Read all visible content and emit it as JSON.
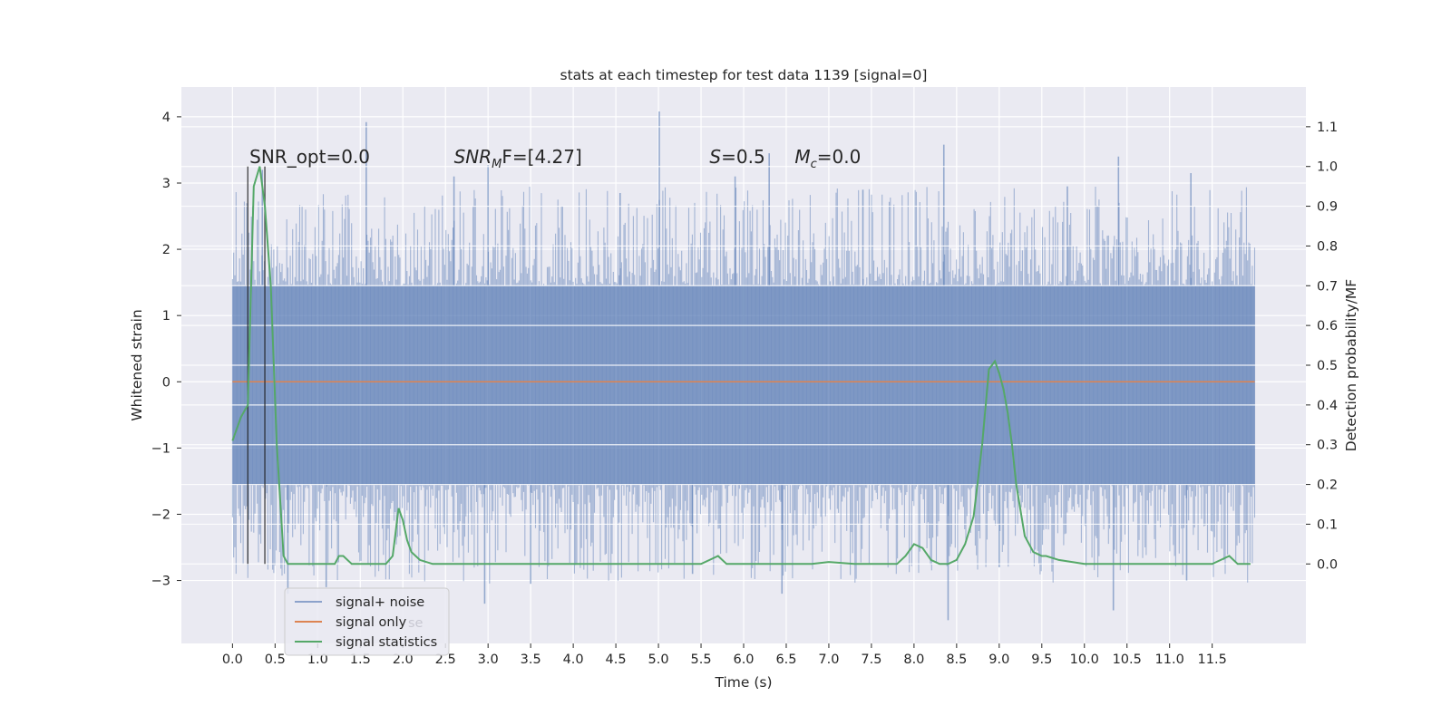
{
  "chart_data": {
    "type": "line",
    "title": "stats at each timestep for test data 1139 [signal=0]",
    "xlabel": "Time (s)",
    "ylabel": "Whitened strain",
    "y2label": "Detection probability/MF",
    "xlim": [
      -0.6,
      12.6
    ],
    "ylim": [
      -3.95,
      4.45
    ],
    "y2lim": [
      -0.2,
      1.2
    ],
    "xticks": [
      0.0,
      0.5,
      1.0,
      1.5,
      2.0,
      2.5,
      3.0,
      3.5,
      4.0,
      4.5,
      5.0,
      5.5,
      6.0,
      6.5,
      7.0,
      7.5,
      8.0,
      8.5,
      9.0,
      9.5,
      10.0,
      10.5,
      11.0,
      11.5
    ],
    "yticks": [
      -3,
      -2,
      -1,
      0,
      1,
      2,
      3,
      4
    ],
    "y2ticks": [
      0.0,
      0.1,
      0.2,
      0.3,
      0.4,
      0.5,
      0.6,
      0.7,
      0.8,
      0.9,
      1.0,
      1.1
    ],
    "ytick_labels": [
      "−3",
      "−2",
      "−1",
      "0",
      "1",
      "2",
      "3",
      "4"
    ],
    "grid": true,
    "legend_position": "lower-left",
    "series": [
      {
        "name": "signal+ noise",
        "color": "#4c72b0",
        "opacity": 0.55,
        "t_range": [
          0.0,
          12.0
        ],
        "band": [
          -1.55,
          1.45
        ],
        "spikes": [
          [
            1.57,
            3.92
          ],
          [
            5.01,
            4.08
          ],
          [
            6.3,
            3.45
          ],
          [
            8.35,
            3.58
          ],
          [
            10.4,
            3.4
          ],
          [
            3.0,
            3.27
          ],
          [
            5.9,
            3.1
          ],
          [
            11.25,
            3.15
          ],
          [
            0.35,
            3.2
          ],
          [
            2.6,
            3.1
          ],
          [
            9.8,
            2.95
          ],
          [
            7.4,
            2.9
          ],
          [
            4.55,
            2.85
          ],
          [
            0.65,
            -3.2
          ],
          [
            2.96,
            -3.35
          ],
          [
            10.34,
            -3.45
          ],
          [
            8.4,
            -3.6
          ],
          [
            6.45,
            -3.2
          ],
          [
            3.5,
            -3.05
          ],
          [
            11.2,
            -3.0
          ],
          [
            5.4,
            -2.9
          ],
          [
            1.1,
            -3.1
          ],
          [
            9.0,
            -2.8
          ]
        ]
      },
      {
        "name": "signal only",
        "color": "#dd8452",
        "value": 0.0
      },
      {
        "name": "signal statistics",
        "color": "#55a868",
        "axis": "right",
        "t": [
          0.0,
          0.1,
          0.18,
          0.25,
          0.32,
          0.38,
          0.45,
          0.52,
          0.6,
          0.65,
          1.2,
          1.25,
          1.3,
          1.4,
          1.8,
          1.88,
          1.95,
          2.0,
          2.05,
          2.1,
          2.2,
          2.35,
          2.5,
          5.5,
          5.6,
          5.7,
          5.8,
          6.0,
          6.5,
          6.8,
          7.0,
          7.3,
          7.8,
          7.9,
          8.0,
          8.1,
          8.2,
          8.3,
          8.4,
          8.5,
          8.6,
          8.7,
          8.8,
          8.88,
          8.95,
          9.0,
          9.05,
          9.1,
          9.15,
          9.2,
          9.3,
          9.4,
          9.5,
          9.55,
          9.7,
          10.0,
          11.5,
          11.6,
          11.7,
          11.8,
          11.95
        ],
        "values": [
          0.31,
          0.37,
          0.4,
          0.95,
          1.0,
          0.9,
          0.7,
          0.3,
          0.02,
          0.0,
          0.0,
          0.02,
          0.02,
          0.0,
          0.0,
          0.02,
          0.14,
          0.11,
          0.06,
          0.03,
          0.01,
          0.0,
          0.0,
          0.0,
          0.01,
          0.02,
          0.0,
          0.0,
          0.0,
          0.0,
          0.005,
          0.0,
          0.0,
          0.02,
          0.05,
          0.04,
          0.01,
          0.0,
          0.0,
          0.01,
          0.05,
          0.12,
          0.3,
          0.49,
          0.51,
          0.48,
          0.44,
          0.38,
          0.3,
          0.2,
          0.07,
          0.03,
          0.02,
          0.02,
          0.01,
          0.0,
          0.0,
          0.01,
          0.02,
          0.0,
          0.0
        ]
      }
    ],
    "vlines": [
      0.18,
      0.38
    ],
    "annotations": [
      {
        "text": "SNR_opt=0.0",
        "x": 0.2,
        "y": 3.3
      },
      {
        "text_main": "SNR",
        "text_sub": "M",
        "text_tail": "F=[4.27]",
        "x": 2.6,
        "y": 3.3
      },
      {
        "text_main": "S",
        "text_tail": "=0.5",
        "x": 5.6,
        "y": 3.3
      },
      {
        "text_main": "M",
        "text_sub": "c",
        "text_tail": "=0.0",
        "x": 6.6,
        "y": 3.3
      }
    ],
    "legend_shadow_text": "se"
  }
}
